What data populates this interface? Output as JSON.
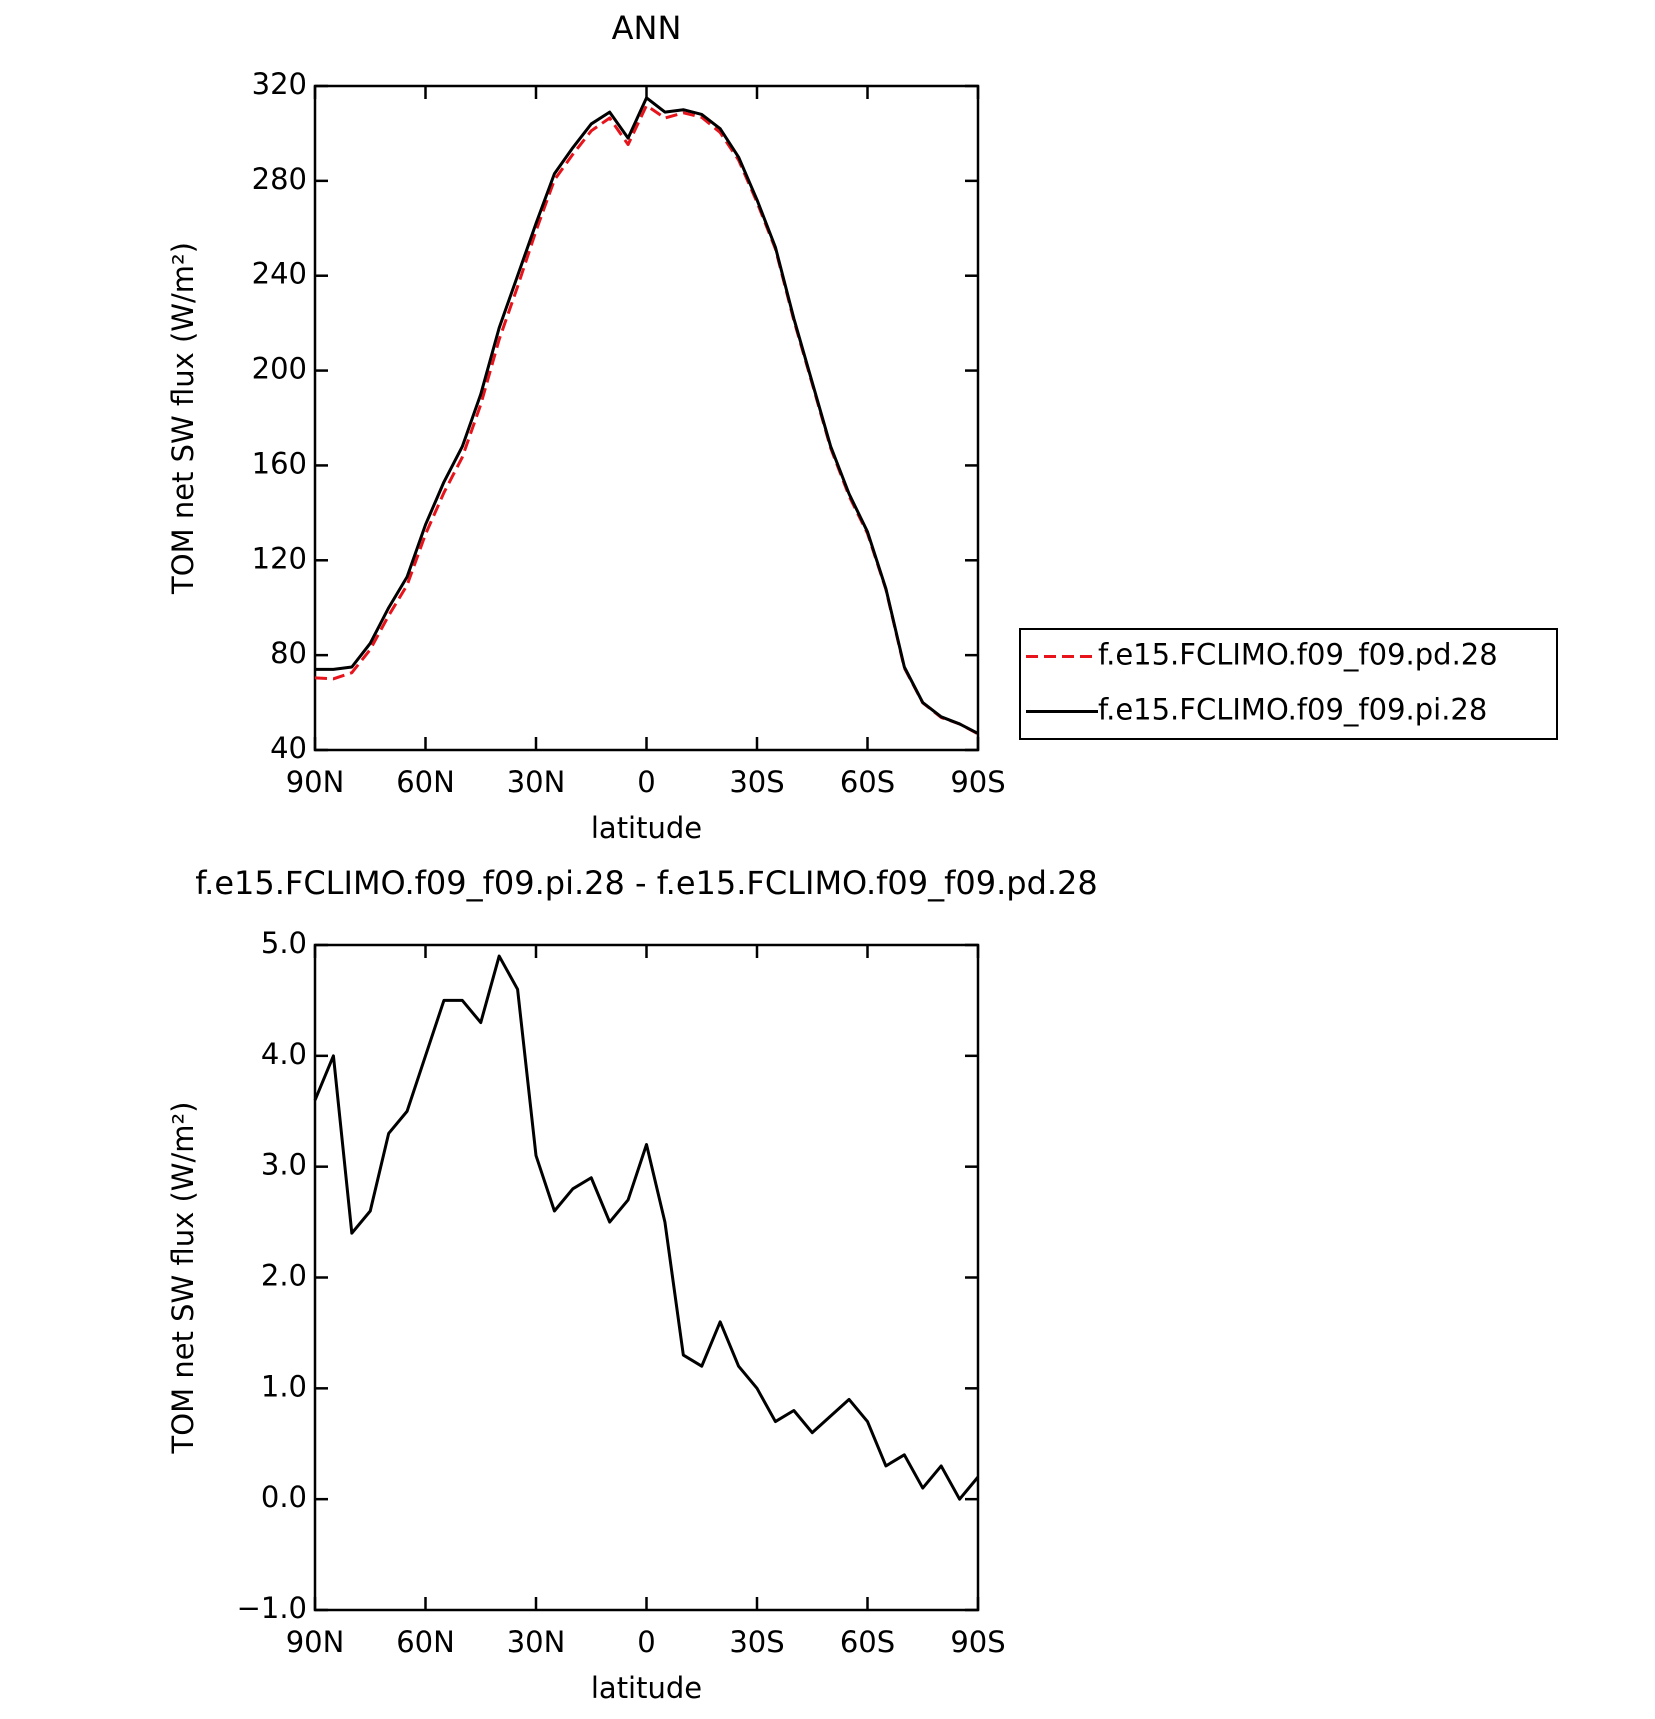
{
  "chart_data": [
    {
      "type": "line",
      "title": "ANN",
      "xlabel": "latitude",
      "ylabel": "TOM net SW flux (W/m²)",
      "x": [
        90,
        85,
        80,
        75,
        70,
        65,
        60,
        55,
        50,
        45,
        40,
        35,
        30,
        25,
        20,
        15,
        10,
        5,
        0,
        -5,
        -10,
        -15,
        -20,
        -25,
        -30,
        -35,
        -40,
        -45,
        -50,
        -55,
        -60,
        -65,
        -70,
        -75,
        -80,
        -85,
        -90
      ],
      "series": [
        {
          "name": "f.e15.FCLIMO.f09_f09.pd.28",
          "color": "#e8141c",
          "dashed": true,
          "values": [
            70.4,
            70,
            72.6,
            82.4,
            96.7,
            109.5,
            131,
            148.5,
            163.5,
            185.7,
            213.1,
            235.4,
            258.9,
            280.4,
            291.2,
            301.1,
            306.5,
            295.3,
            311.8,
            306.5,
            308.7,
            306.8,
            300.4,
            288.8,
            271,
            251.3,
            221.2,
            194.4,
            167.3,
            147.1,
            131.3,
            107.7,
            74.6,
            59.9,
            53.7,
            51,
            46.8
          ]
        },
        {
          "name": "f.e15.FCLIMO.f09_f09.pi.28",
          "color": "#000000",
          "dashed": false,
          "values": [
            74,
            74,
            75,
            85,
            100,
            113,
            135,
            153,
            168,
            190,
            218,
            240,
            262,
            283,
            294,
            304,
            309,
            298,
            315,
            309,
            310,
            308,
            302,
            290,
            272,
            252,
            222,
            195,
            168,
            148,
            132,
            108,
            75,
            60,
            54,
            51,
            47
          ]
        }
      ],
      "xlim": [
        90,
        -90
      ],
      "xticks": [
        {
          "value": 90,
          "label": "90N"
        },
        {
          "value": 60,
          "label": "60N"
        },
        {
          "value": 30,
          "label": "30N"
        },
        0,
        {
          "value": -30,
          "label": "30S"
        },
        {
          "value": -60,
          "label": "60S"
        },
        {
          "value": -90,
          "label": "90S"
        }
      ],
      "ylim": [
        40,
        320
      ],
      "yticks": [
        40,
        80,
        120,
        160,
        200,
        240,
        280,
        320
      ]
    },
    {
      "type": "line",
      "title": "f.e15.FCLIMO.f09_f09.pi.28 - f.e15.FCLIMO.f09_f09.pd.28",
      "xlabel": "latitude",
      "ylabel": "TOM net SW flux (W/m²)",
      "x": [
        90,
        85,
        80,
        75,
        70,
        65,
        60,
        55,
        50,
        45,
        40,
        35,
        30,
        25,
        20,
        15,
        10,
        5,
        0,
        -5,
        -10,
        -15,
        -20,
        -25,
        -30,
        -35,
        -40,
        -45,
        -50,
        -55,
        -60,
        -65,
        -70,
        -75,
        -80,
        -85,
        -90
      ],
      "series": [
        {
          "color": "#000000",
          "dashed": false,
          "values": [
            3.6,
            4.0,
            2.4,
            2.6,
            3.3,
            3.5,
            4.0,
            4.5,
            4.5,
            4.3,
            4.9,
            4.6,
            3.1,
            2.6,
            2.8,
            2.9,
            2.5,
            2.7,
            3.2,
            2.5,
            1.3,
            1.2,
            1.6,
            1.2,
            1.0,
            0.7,
            0.8,
            0.6,
            0.75,
            0.9,
            0.7,
            0.3,
            0.4,
            0.1,
            0.3,
            0.0,
            0.2
          ]
        }
      ],
      "xlim": [
        90,
        -90
      ],
      "xticks": [
        {
          "value": 90,
          "label": "90N"
        },
        {
          "value": 60,
          "label": "60N"
        },
        {
          "value": 30,
          "label": "30N"
        },
        0,
        {
          "value": -30,
          "label": "30S"
        },
        {
          "value": -60,
          "label": "60S"
        },
        {
          "value": -90,
          "label": "90S"
        }
      ],
      "ylim": [
        -1,
        5
      ],
      "yticks": [
        {
          "value": -1,
          "label": "−1.0"
        },
        {
          "value": 0,
          "label": "0.0"
        },
        {
          "value": 1,
          "label": "1.0"
        },
        {
          "value": 2,
          "label": "2.0"
        },
        {
          "value": 3,
          "label": "3.0"
        },
        {
          "value": 4,
          "label": "4.0"
        },
        {
          "value": 5,
          "label": "5.0"
        }
      ]
    }
  ]
}
